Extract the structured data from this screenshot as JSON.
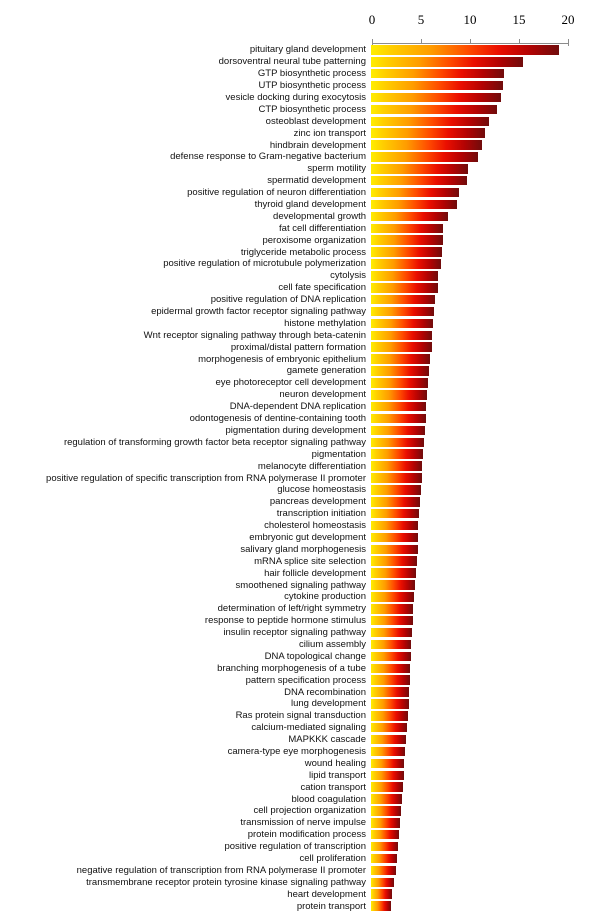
{
  "chart_data": {
    "type": "bar",
    "orientation": "horizontal",
    "title": "",
    "xlabel": "",
    "ylabel": "",
    "xlim": [
      0,
      20
    ],
    "axis_position": "top",
    "axis_ticks": [
      0,
      5,
      10,
      15,
      20
    ],
    "grid": false,
    "legend": "none",
    "bar_gradient": [
      "#ffee00",
      "#ff9c00",
      "#ea0e00",
      "#700c0c"
    ],
    "axis_color": "#8c8c8c",
    "categories": [
      "pituitary gland development",
      "dorsoventral neural tube patterning",
      "GTP biosynthetic process",
      "UTP biosynthetic process",
      "vesicle docking during exocytosis",
      "CTP biosynthetic process",
      "osteoblast development",
      "zinc ion transport",
      "hindbrain development",
      "defense response to Gram-negative bacterium",
      "sperm motility",
      "spermatid development",
      "positive regulation of neuron differentiation",
      "thyroid gland development",
      "developmental growth",
      "fat cell differentiation",
      "peroxisome organization",
      "triglyceride metabolic process",
      "positive regulation of microtubule polymerization",
      "cytolysis",
      "cell fate specification",
      "positive regulation of DNA replication",
      "epidermal growth factor receptor signaling pathway",
      "histone methylation",
      "Wnt receptor signaling pathway through beta-catenin",
      "proximal/distal pattern formation",
      "morphogenesis of embryonic epithelium",
      "gamete generation",
      "eye photoreceptor cell development",
      "neuron development",
      "DNA-dependent DNA replication",
      "odontogenesis of dentine-containing tooth",
      "pigmentation during development",
      "regulation of transforming growth factor beta receptor signaling pathway",
      "pigmentation",
      "melanocyte differentiation",
      "positive regulation of specific transcription from RNA polymerase II promoter",
      "glucose homeostasis",
      "pancreas development",
      "transcription initiation",
      "cholesterol homeostasis",
      "embryonic gut development",
      "salivary gland morphogenesis",
      "mRNA splice site selection",
      "hair follicle development",
      "smoothened signaling pathway",
      "cytokine production",
      "determination of left/right symmetry",
      "response to peptide hormone stimulus",
      "insulin receptor signaling pathway",
      "cilium assembly",
      "DNA topological change",
      "branching morphogenesis of a tube",
      "pattern specification process",
      "DNA recombination",
      "lung development",
      "Ras protein signal transduction",
      "calcium-mediated signaling",
      "MAPKKK cascade",
      "camera-type eye morphogenesis",
      "wound healing",
      "lipid transport",
      "cation transport",
      "blood coagulation",
      "cell projection organization",
      "transmission of nerve impulse",
      "protein modification process",
      "positive regulation of transcription",
      "cell proliferation",
      "negative regulation of transcription from RNA polymerase II promoter",
      "transmembrane receptor protein tyrosine kinase signaling pathway",
      "heart development",
      "protein transport"
    ],
    "values": [
      19.2,
      15.5,
      13.6,
      13.5,
      13.3,
      12.9,
      12.0,
      11.6,
      11.3,
      10.9,
      9.9,
      9.8,
      9.0,
      8.8,
      7.9,
      7.3,
      7.3,
      7.2,
      7.1,
      6.8,
      6.8,
      6.5,
      6.4,
      6.3,
      6.2,
      6.2,
      6.0,
      5.9,
      5.8,
      5.7,
      5.6,
      5.6,
      5.5,
      5.4,
      5.3,
      5.2,
      5.2,
      5.1,
      5.0,
      4.9,
      4.8,
      4.8,
      4.8,
      4.7,
      4.6,
      4.5,
      4.4,
      4.3,
      4.3,
      4.2,
      4.1,
      4.1,
      4.0,
      4.0,
      3.9,
      3.9,
      3.8,
      3.7,
      3.6,
      3.5,
      3.4,
      3.4,
      3.3,
      3.2,
      3.1,
      3.0,
      2.9,
      2.8,
      2.7,
      2.5,
      2.3,
      2.1,
      2.0
    ]
  }
}
